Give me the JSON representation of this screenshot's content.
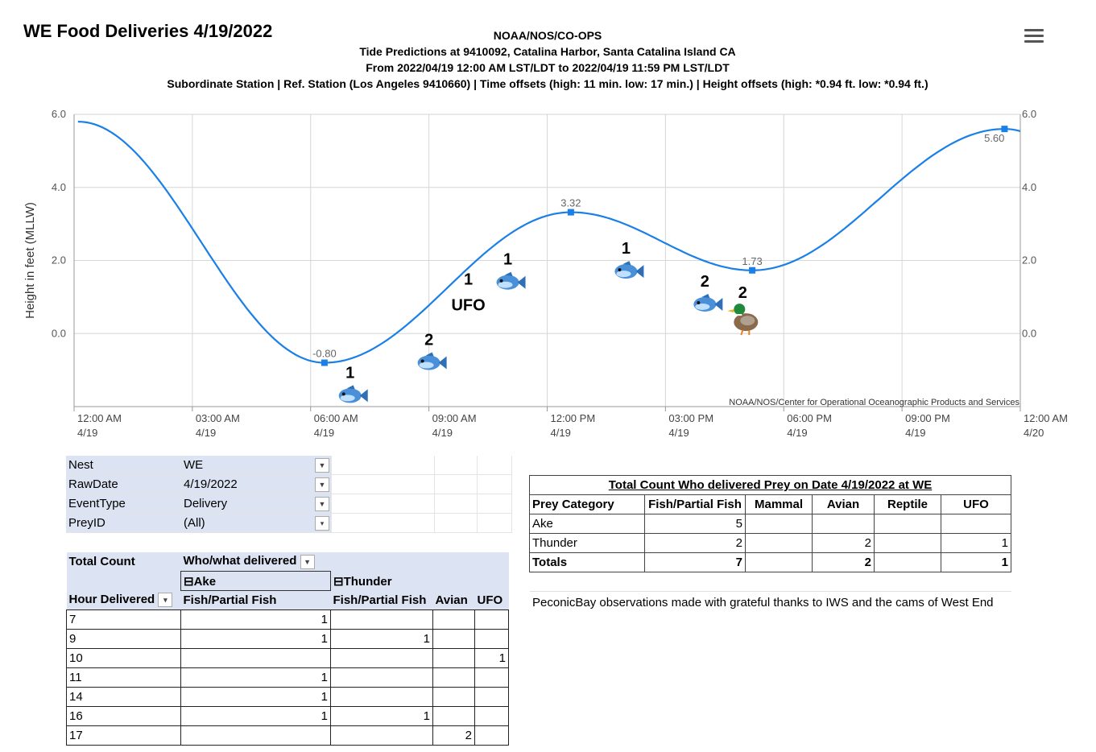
{
  "page_title": "WE Food Deliveries 4/19/2022",
  "header": {
    "line1": "NOAA/NOS/CO-OPS",
    "line2": "Tide Predictions at 9410092, Catalina Harbor, Santa Catalina Island CA",
    "line3": "From 2022/04/19 12:00 AM LST/LDT to 2022/04/19 11:59 PM LST/LDT",
    "line4": "Subordinate Station | Ref. Station (Los Angeles 9410660) | Time offsets (high: 11 min. low: 17 min.) | Height offsets (high: *0.94 ft. low: *0.94 ft.)"
  },
  "menu_icon": "hamburger-menu-icon",
  "chart_data": {
    "type": "line",
    "ylabel": "Height in feet (MLLW)",
    "ylim": [
      -2.0,
      6.0
    ],
    "y_ticks": [
      6.0,
      4.0,
      2.0,
      0.0
    ],
    "y_tick_labels": [
      "6.0",
      "4.0",
      "2.0",
      "0.0"
    ],
    "xlim_hours": [
      0,
      24
    ],
    "x_ticks": [
      {
        "hour": 0,
        "time": "12:00 AM",
        "date": "4/19"
      },
      {
        "hour": 3,
        "time": "03:00 AM",
        "date": "4/19"
      },
      {
        "hour": 6,
        "time": "06:00 AM",
        "date": "4/19"
      },
      {
        "hour": 9,
        "time": "09:00 AM",
        "date": "4/19"
      },
      {
        "hour": 12,
        "time": "12:00 PM",
        "date": "4/19"
      },
      {
        "hour": 15,
        "time": "03:00 PM",
        "date": "4/19"
      },
      {
        "hour": 18,
        "time": "06:00 PM",
        "date": "4/19"
      },
      {
        "hour": 21,
        "time": "09:00 PM",
        "date": "4/19"
      },
      {
        "hour": 24,
        "time": "12:00 AM",
        "date": "4/20"
      }
    ],
    "start_height": 5.5,
    "extremes": [
      {
        "hour": 6.35,
        "value": -0.8,
        "label": "-0.80"
      },
      {
        "hour": 12.6,
        "value": 3.32,
        "label": "3.32"
      },
      {
        "hour": 17.2,
        "value": 1.73,
        "label": "1.73"
      },
      {
        "hour": 23.6,
        "value": 5.6,
        "label": "5.60"
      }
    ],
    "annotations": [
      {
        "count": "1",
        "icon": "fish-icon",
        "hour": 7,
        "height": -1.7
      },
      {
        "count": "2",
        "icon": "fish-icon",
        "hour": 9,
        "height": -0.8
      },
      {
        "count": "1",
        "label": "UFO",
        "hour": 10,
        "height": 0.9
      },
      {
        "count": "1",
        "icon": "fish-icon",
        "hour": 11,
        "height": 1.4
      },
      {
        "count": "1",
        "icon": "fish-icon",
        "hour": 14,
        "height": 1.7
      },
      {
        "count": "2",
        "icon": "fish-icon",
        "hour": 16,
        "height": 0.8
      },
      {
        "count": "2",
        "icon": "duck-icon",
        "hour": 17,
        "height": 0.4
      }
    ],
    "credit": "NOAA/NOS/Center for Operational Oceanographic Products and Services",
    "line_color": "#1a7fe6",
    "grid": true
  },
  "pivot": {
    "filters": [
      {
        "field": "Nest",
        "value": "WE"
      },
      {
        "field": "RawDate",
        "value": "4/19/2022"
      },
      {
        "field": "EventType",
        "value": "Delivery"
      },
      {
        "field": "PreyID",
        "value": "(All)"
      }
    ],
    "values_label": "Total Count",
    "columns_label": "Who/what delivered",
    "group1": "Ake",
    "group2": "Thunder",
    "row_label": "Hour Delivered",
    "col_headers": [
      "Fish/Partial Fish",
      "Fish/Partial Fish",
      "Avian",
      "UFO"
    ],
    "rows": [
      {
        "hour": "7",
        "c": [
          "1",
          "",
          "",
          ""
        ]
      },
      {
        "hour": "9",
        "c": [
          "1",
          "1",
          "",
          ""
        ]
      },
      {
        "hour": "10",
        "c": [
          "",
          "",
          "",
          "1"
        ]
      },
      {
        "hour": "11",
        "c": [
          "1",
          "",
          "",
          ""
        ]
      },
      {
        "hour": "14",
        "c": [
          "1",
          "",
          "",
          ""
        ]
      },
      {
        "hour": "16",
        "c": [
          "1",
          "1",
          "",
          ""
        ]
      },
      {
        "hour": "17",
        "c": [
          "",
          "",
          "2",
          ""
        ]
      }
    ]
  },
  "summary": {
    "title": "Total Count Who delivered Prey on Date 4/19/2022 at WE",
    "headers": [
      "Prey Category",
      "Fish/Partial Fish",
      "Mammal",
      "Avian",
      "Reptile",
      "UFO"
    ],
    "rows": [
      {
        "name": "Ake",
        "c": [
          "5",
          "",
          "",
          "",
          ""
        ]
      },
      {
        "name": "Thunder",
        "c": [
          "2",
          "",
          "2",
          "",
          "1"
        ]
      }
    ],
    "totals": {
      "name": "Totals",
      "c": [
        "7",
        "",
        "2",
        "",
        "1"
      ]
    },
    "note": "PeconicBay observations made with grateful thanks to IWS and the cams of West End"
  }
}
